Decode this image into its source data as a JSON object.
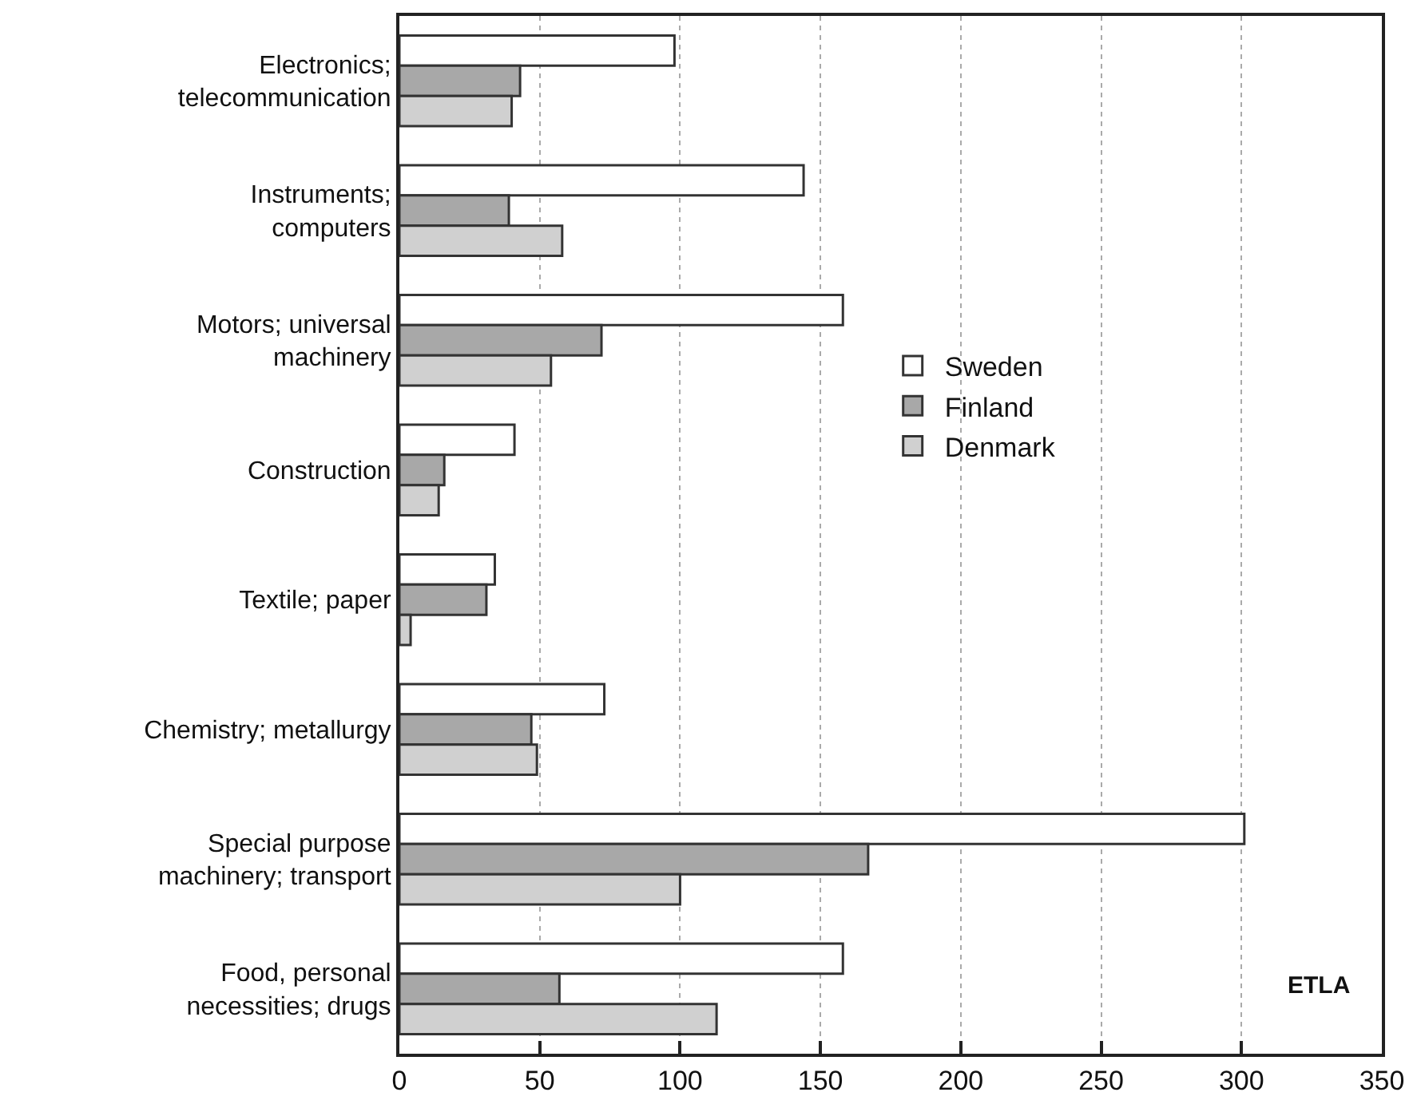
{
  "chart_data": {
    "type": "bar",
    "orientation": "horizontal",
    "categories": [
      "Electronics;\ntelecommunication",
      "Instruments;\ncomputers",
      "Motors; universal\nmachinery",
      "Construction",
      "Textile; paper",
      "Chemistry; metallurgy",
      "Special purpose\nmachinery; transport",
      "Food, personal\nnecessities; drugs"
    ],
    "series": [
      {
        "name": "Sweden",
        "color": "#ffffff",
        "values": [
          98,
          144,
          158,
          41,
          34,
          73,
          301,
          158
        ]
      },
      {
        "name": "Finland",
        "color": "#a8a8a8",
        "values": [
          43,
          39,
          72,
          16,
          31,
          47,
          167,
          57
        ]
      },
      {
        "name": "Denmark",
        "color": "#d0d0d0",
        "values": [
          40,
          58,
          54,
          14,
          4,
          49,
          100,
          113
        ]
      }
    ],
    "xlim": [
      0,
      350
    ],
    "xticks": [
      0,
      50,
      100,
      150,
      200,
      250,
      300,
      350
    ],
    "grid": "x",
    "legend": "right",
    "annotations": [
      "ETLA"
    ]
  }
}
